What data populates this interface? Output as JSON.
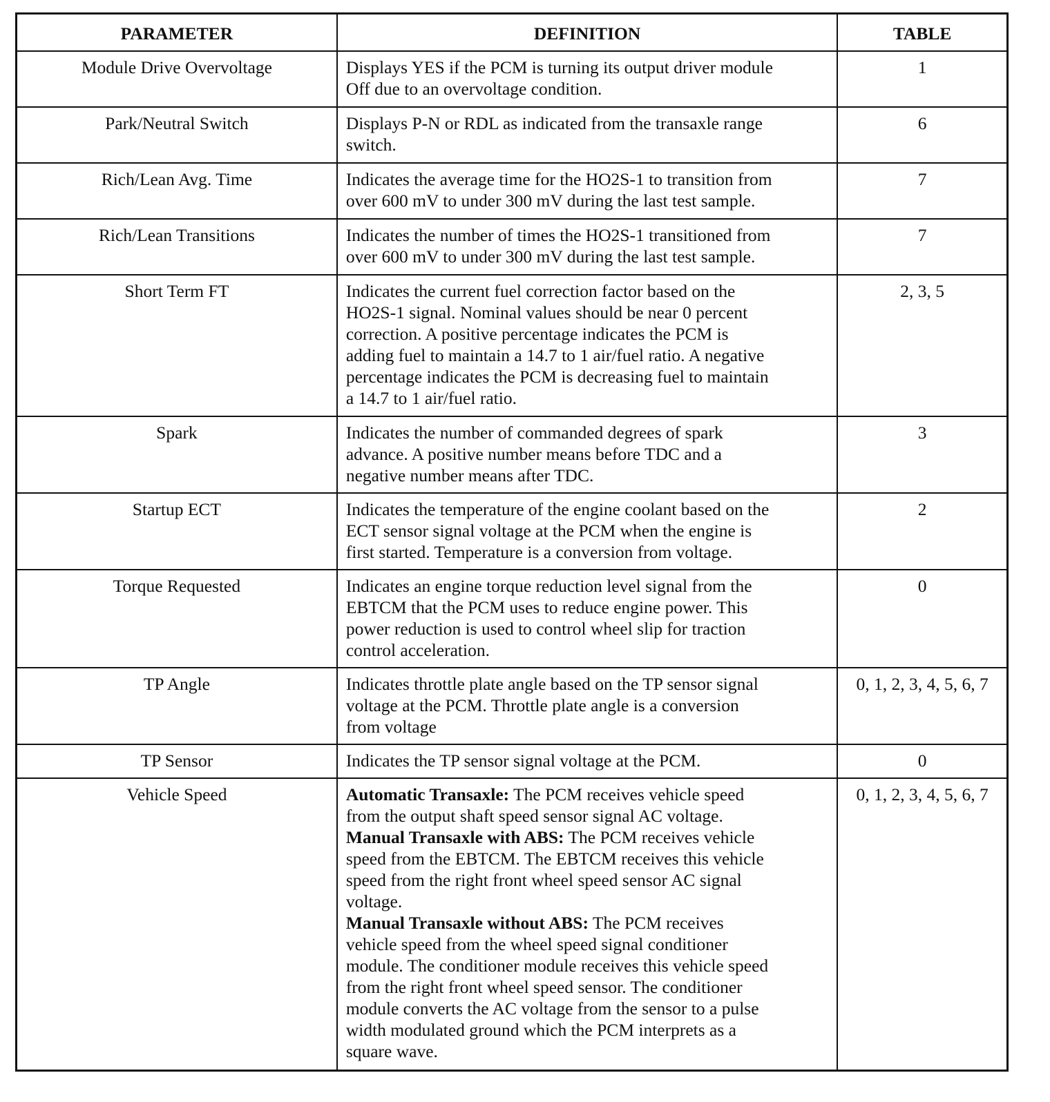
{
  "headers": {
    "parameter": "PARAMETER",
    "definition": "DEFINITION",
    "table": "TABLE"
  },
  "rows": [
    {
      "parameter": "Module Drive Overvoltage",
      "table": "1",
      "lines": [
        {
          "t": "Displays YES if the PCM is turning its output driver module"
        },
        {
          "t": "Off due to an overvoltage condition."
        }
      ]
    },
    {
      "parameter": "Park/Neutral Switch",
      "table": "6",
      "lines": [
        {
          "t": "Displays P-N or RDL as indicated from the transaxle range"
        },
        {
          "t": "switch."
        }
      ]
    },
    {
      "parameter": "Rich/Lean Avg.  Time",
      "table": "7",
      "lines": [
        {
          "t": "Indicates the average time for the HO2S-1 to transition from"
        },
        {
          "t": "over 600 mV to under 300 mV during the last test sample."
        }
      ]
    },
    {
      "parameter": "Rich/Lean Transitions",
      "table": "7",
      "lines": [
        {
          "t": "Indicates the number of times the HO2S-1 transitioned from"
        },
        {
          "t": "over 600 mV to under 300 mV during the last test sample."
        }
      ]
    },
    {
      "parameter": "Short Term FT",
      "table": "2, 3, 5",
      "lines": [
        {
          "t": "Indicates the current fuel correction factor based on the"
        },
        {
          "t": "HO2S-1 signal. Nominal values should be near 0 percent"
        },
        {
          "t": "correction.  A positive percentage indicates the PCM is"
        },
        {
          "t": "adding fuel to maintain a 14.7 to 1 air/fuel ratio. A negative"
        },
        {
          "t": "percentage indicates the PCM is decreasing fuel to maintain"
        },
        {
          "t": "a 14.7 to 1 air/fuel ratio."
        }
      ]
    },
    {
      "parameter": "Spark",
      "table": "3",
      "lines": [
        {
          "t": "Indicates the number of commanded degrees of spark"
        },
        {
          "t": "advance.  A positive number means before TDC and a"
        },
        {
          "t": "negative number means after TDC."
        }
      ]
    },
    {
      "parameter": "Startup ECT",
      "table": "2",
      "lines": [
        {
          "t": "Indicates the temperature of the engine coolant based on the"
        },
        {
          "t": "ECT sensor signal voltage at the PCM when the engine is"
        },
        {
          "t": "first started. Temperature is a conversion from voltage."
        }
      ]
    },
    {
      "parameter": "Torque Requested",
      "table": "0",
      "lines": [
        {
          "t": "Indicates an engine torque reduction level signal from the"
        },
        {
          "t": "EBTCM that the PCM uses to reduce engine power. This"
        },
        {
          "t": "power reduction is used to control wheel slip for traction"
        },
        {
          "t": "control acceleration."
        }
      ]
    },
    {
      "parameter": "TP Angle",
      "table": "0, 1, 2, 3, 4, 5, 6, 7",
      "lines": [
        {
          "t": "Indicates throttle plate angle based on the TP sensor signal"
        },
        {
          "t": "voltage at the PCM. Throttle plate angle is a conversion"
        },
        {
          "t": "from voltage"
        }
      ]
    },
    {
      "parameter": "TP Sensor",
      "table": "0",
      "lines": [
        {
          "t": "Indicates the TP sensor signal voltage at the PCM."
        }
      ]
    },
    {
      "parameter": "Vehicle Speed",
      "table": "0, 1, 2, 3, 4, 5, 6, 7",
      "lines": [
        {
          "b": "Automatic Transaxle:",
          "t": " The PCM receives vehicle speed"
        },
        {
          "t": "from the output shaft speed sensor signal AC voltage."
        },
        {
          "b": "Manual Transaxle with ABS:",
          "t": " The PCM receives vehicle"
        },
        {
          "t": "speed from the EBTCM. The EBTCM receives this vehicle"
        },
        {
          "t": "speed from the right front wheel speed sensor AC signal"
        },
        {
          "t": "voltage."
        },
        {
          "b": "Manual Transaxle without ABS:",
          "t": " The PCM receives"
        },
        {
          "t": "vehicle speed from the wheel speed signal conditioner"
        },
        {
          "t": "module. The conditioner module receives this vehicle speed"
        },
        {
          "t": "from the right front wheel speed sensor. The conditioner"
        },
        {
          "t": "module converts the AC voltage from the sensor to a pulse"
        },
        {
          "t": "width modulated ground which the PCM interprets as a"
        },
        {
          "t": "square wave."
        }
      ]
    }
  ]
}
